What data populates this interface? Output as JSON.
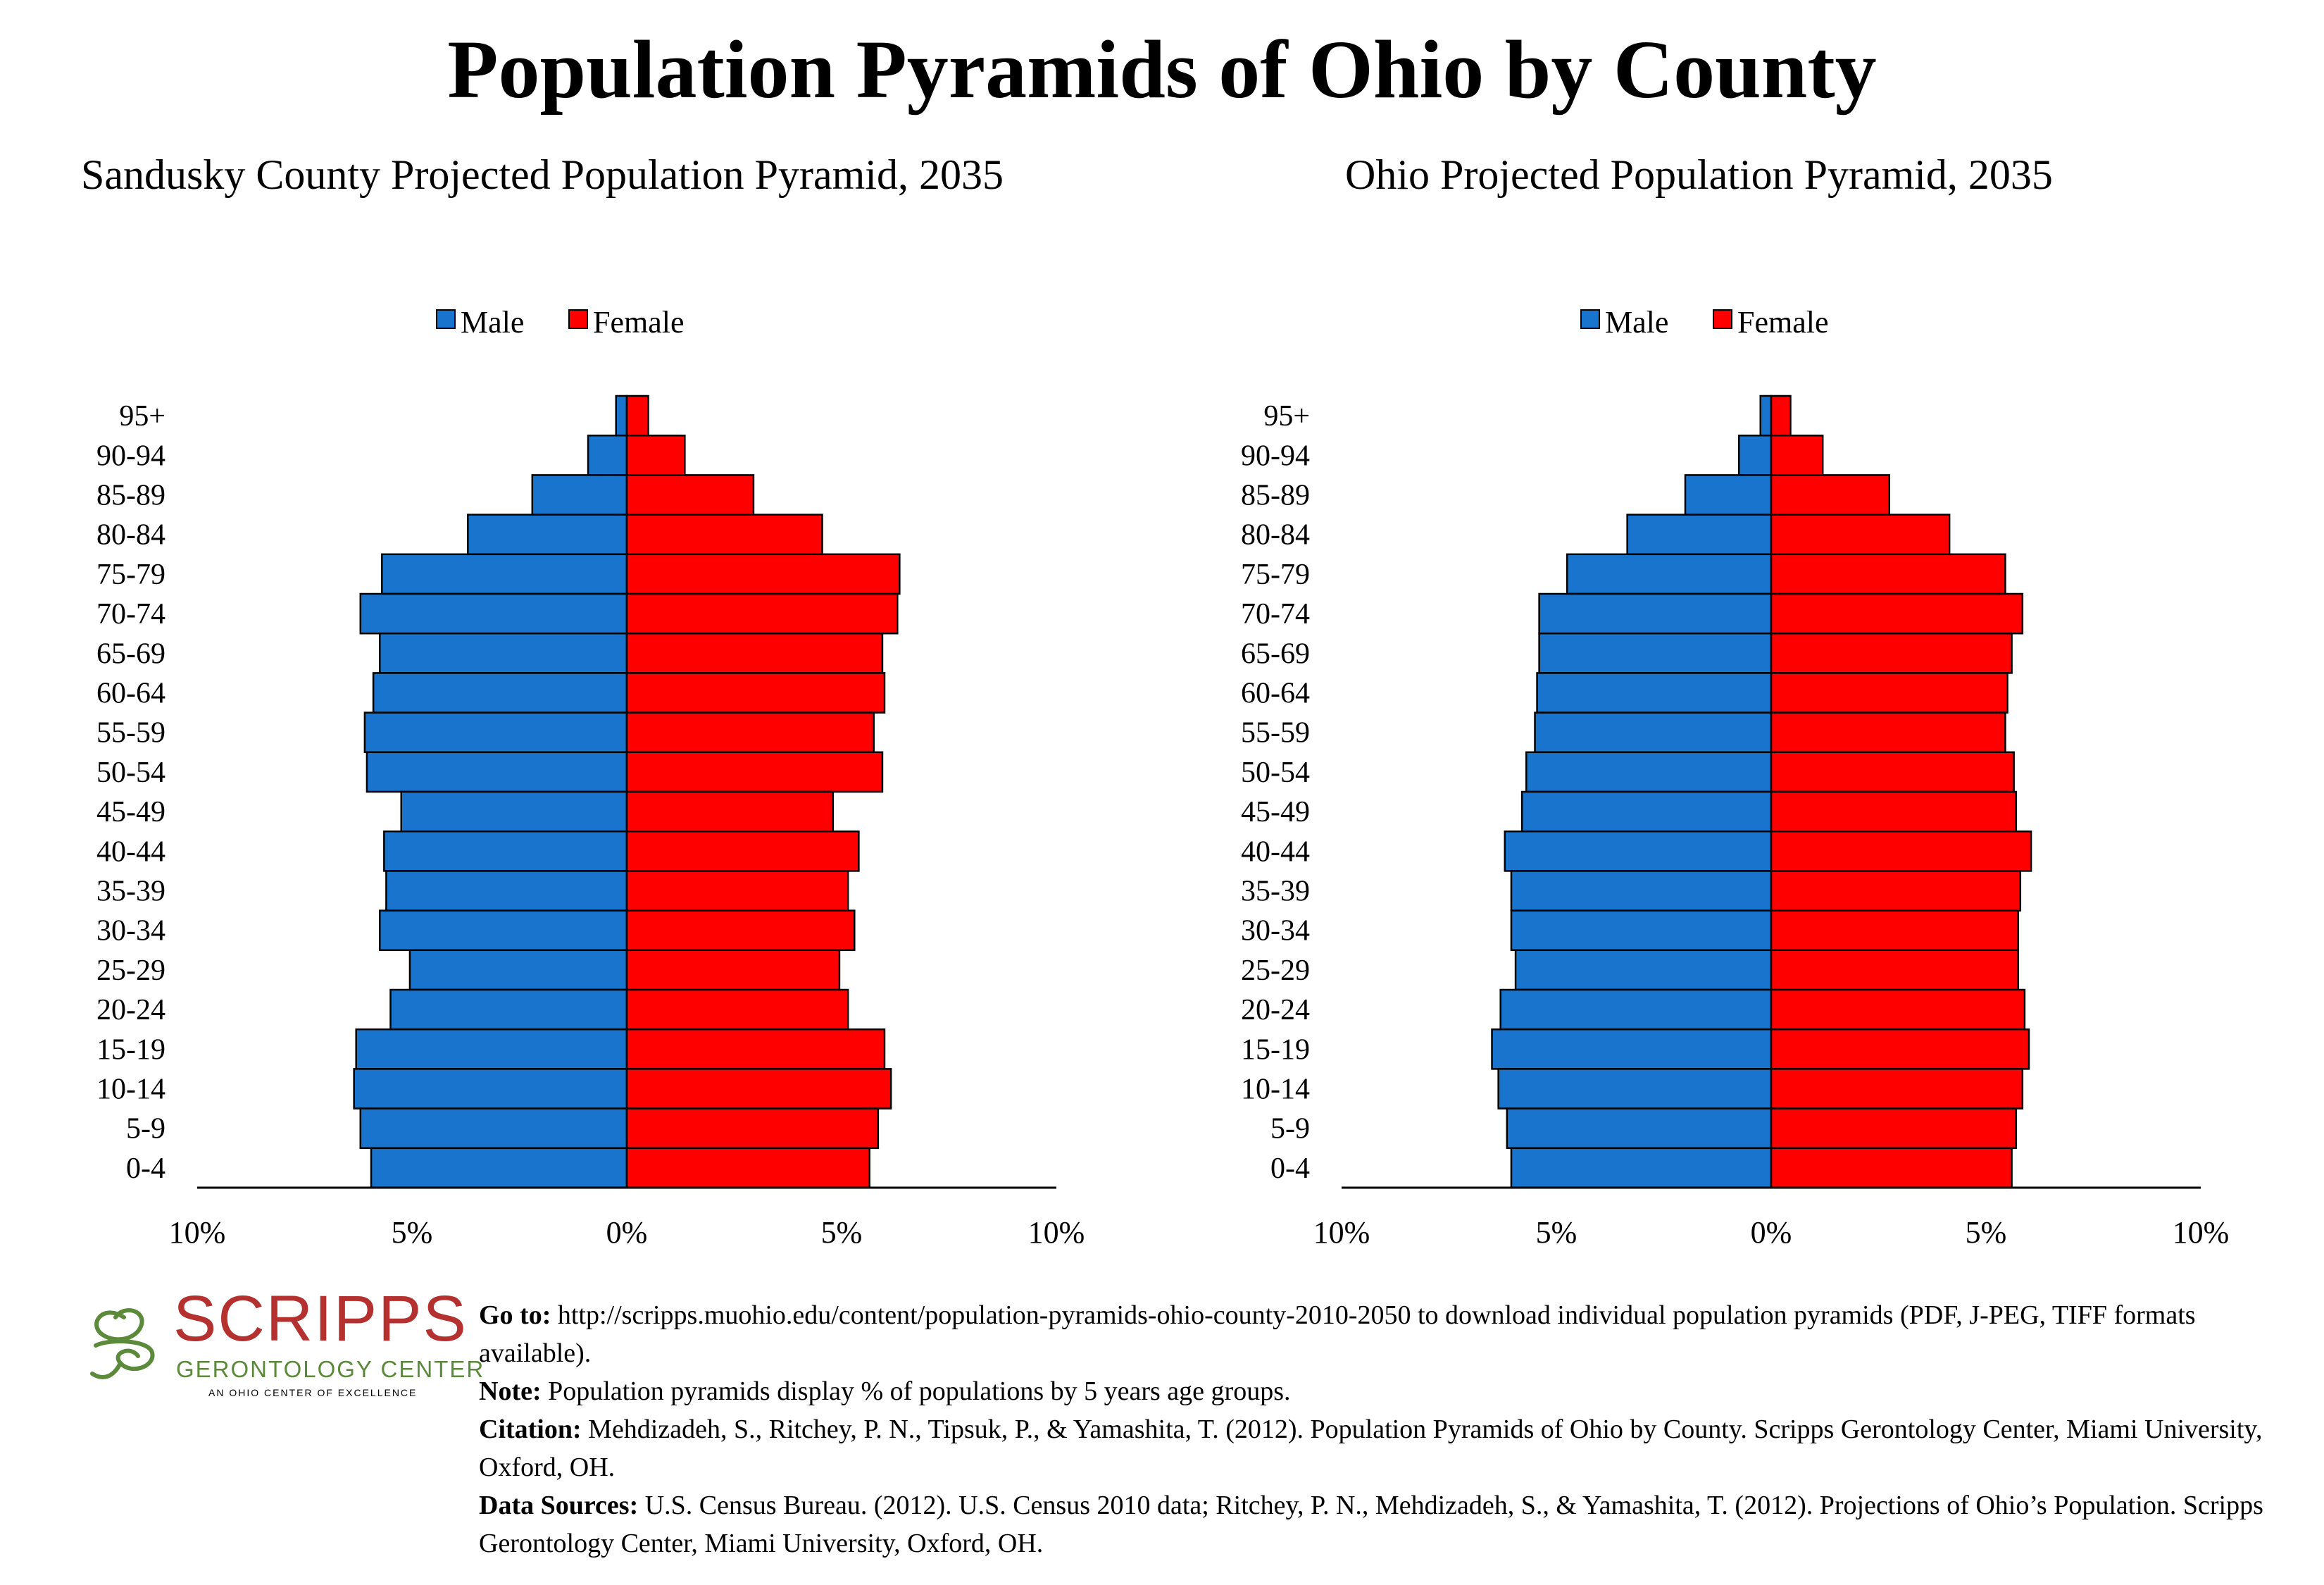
{
  "title": "Population Pyramids of Ohio by County",
  "legend": {
    "male": "Male",
    "female": "Female"
  },
  "colors": {
    "male": "#1874cd",
    "female": "#ff0000",
    "logo_red": "#b5312f",
    "logo_green": "#5b8a3a"
  },
  "x_ticks": [
    "10%",
    "5%",
    "0%",
    "5%",
    "10%"
  ],
  "chart_data": [
    {
      "type": "bar",
      "subtype": "population-pyramid",
      "title": "Sandusky County Projected Population Pyramid, 2035",
      "categories": [
        "95+",
        "90-94",
        "85-89",
        "80-84",
        "75-79",
        "70-74",
        "65-69",
        "60-64",
        "55-59",
        "50-54",
        "45-49",
        "40-44",
        "35-39",
        "30-34",
        "25-29",
        "20-24",
        "15-19",
        "10-14",
        "5-9",
        "0-4"
      ],
      "series": [
        {
          "name": "Male",
          "values": [
            0.25,
            0.9,
            2.2,
            3.7,
            5.7,
            6.2,
            5.75,
            5.9,
            6.1,
            6.05,
            5.25,
            5.65,
            5.6,
            5.75,
            5.05,
            5.5,
            6.3,
            6.35,
            6.2,
            5.95
          ]
        },
        {
          "name": "Female",
          "values": [
            0.5,
            1.35,
            2.95,
            4.55,
            6.35,
            6.3,
            5.95,
            6.0,
            5.75,
            5.95,
            4.8,
            5.4,
            5.15,
            5.3,
            4.95,
            5.15,
            6.0,
            6.15,
            5.85,
            5.65
          ]
        }
      ],
      "xlim": [
        -10,
        10
      ],
      "legend_position": "top-center"
    },
    {
      "type": "bar",
      "subtype": "population-pyramid",
      "title": "Ohio Projected Population Pyramid, 2035",
      "categories": [
        "95+",
        "90-94",
        "85-89",
        "80-84",
        "75-79",
        "70-74",
        "65-69",
        "60-64",
        "55-59",
        "50-54",
        "45-49",
        "40-44",
        "35-39",
        "30-34",
        "25-29",
        "20-24",
        "15-19",
        "10-14",
        "5-9",
        "0-4"
      ],
      "series": [
        {
          "name": "Male",
          "values": [
            0.25,
            0.75,
            2.0,
            3.35,
            4.75,
            5.4,
            5.4,
            5.45,
            5.5,
            5.7,
            5.8,
            6.2,
            6.05,
            6.05,
            5.95,
            6.3,
            6.5,
            6.35,
            6.15,
            6.05
          ]
        },
        {
          "name": "Female",
          "values": [
            0.45,
            1.2,
            2.75,
            4.15,
            5.45,
            5.85,
            5.6,
            5.5,
            5.45,
            5.65,
            5.7,
            6.05,
            5.8,
            5.75,
            5.75,
            5.9,
            6.0,
            5.85,
            5.7,
            5.6
          ]
        }
      ],
      "xlim": [
        -10,
        10
      ],
      "legend_position": "top-center"
    }
  ],
  "logo": {
    "wordmark": "SCRIPPS",
    "subtitle": "GERONTOLOGY CENTER",
    "tagline": "AN OHIO CENTER OF EXCELLENCE"
  },
  "notes": {
    "goto_label": "Go to:",
    "goto_text": " http://scripps.muohio.edu/content/population-pyramids-ohio-county-2010-2050 to download individual population pyramids (PDF, J-PEG, TIFF formats available).",
    "note_label": "Note:",
    "note_text": " Population pyramids display % of populations by 5 years age groups.",
    "citation_label": "Citation:",
    "citation_text": " Mehdizadeh, S., Ritchey, P. N., Tipsuk, P., & Yamashita, T. (2012). Population Pyramids of Ohio by County. Scripps Gerontology Center, Miami University, Oxford, OH.",
    "sources_label": "Data Sources:",
    "sources_text": " U.S. Census Bureau. (2012). U.S. Census 2010 data; Ritchey, P. N., Mehdizadeh, S., & Yamashita, T. (2012). Projections of Ohio’s Population. Scripps Gerontology Center, Miami University, Oxford, OH."
  }
}
